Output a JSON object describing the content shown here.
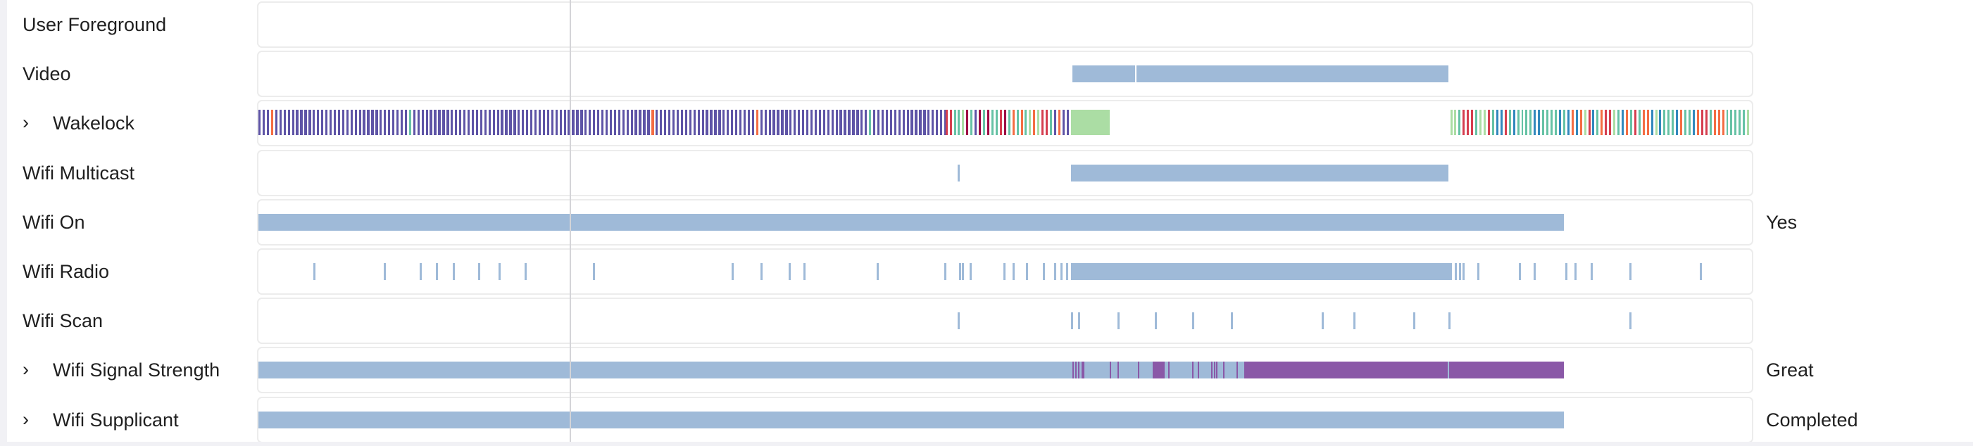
{
  "colors": {
    "bar": "#9fbad8",
    "signal_great": "#8a58a7",
    "wakelock_primary": "#5e54a6",
    "wakelock_teal": "#66c2a5",
    "wakelock_green": "#abdda4",
    "wakelock_red": "#d53e4f",
    "wakelock_orange": "#f46d43",
    "wakelock_maroon": "#9e0142",
    "wakelock_blue": "#3288bd"
  },
  "rows": [
    {
      "label": "User Foreground",
      "expandable": false,
      "value": "",
      "segments": []
    },
    {
      "label": "Video",
      "expandable": false,
      "value": "",
      "segments": [
        [
          54.5,
          58.7
        ],
        [
          58.8,
          79.7
        ]
      ]
    },
    {
      "label": "Wakelock",
      "expandable": true,
      "value": "",
      "wakelock": {
        "dense_primary": [
          0,
          46.0
        ],
        "mixed": [
          46.0,
          54.4
        ],
        "green_block": [
          54.4,
          57.0
        ],
        "teal_mix": [
          79.8,
          100
        ]
      }
    },
    {
      "label": "Wifi Multicast",
      "expandable": false,
      "value": "",
      "segments": [
        [
          46.8,
          46.95
        ],
        [
          54.4,
          79.7
        ]
      ]
    },
    {
      "label": "Wifi On",
      "expandable": false,
      "value": "Yes",
      "segments": [
        [
          0,
          87.4
        ]
      ]
    },
    {
      "label": "Wifi Radio",
      "expandable": false,
      "value": "",
      "ticks": [
        3.7,
        8.4,
        10.8,
        11.9,
        13.0,
        14.7,
        16.1,
        17.8,
        22.4,
        31.7,
        33.6,
        35.5,
        36.5,
        41.4,
        45.9,
        46.9,
        47.1,
        47.6,
        49.9,
        50.5,
        51.4,
        52.5,
        53.3,
        53.7,
        54.1,
        80.1,
        80.4,
        80.6,
        81.6,
        84.4,
        85.4,
        87.5,
        88.1,
        89.2,
        91.8,
        96.5
      ],
      "segments": [
        [
          54.4,
          79.9
        ]
      ]
    },
    {
      "label": "Wifi Scan",
      "expandable": false,
      "value": "",
      "ticks": [
        46.8,
        54.4,
        54.9,
        57.5,
        60.0,
        62.5,
        65.1,
        71.2,
        73.3,
        77.3,
        79.7,
        91.8
      ],
      "segments": []
    },
    {
      "label": "Wifi Signal Strength",
      "expandable": true,
      "value": "Great",
      "segments": [
        [
          0,
          87.4
        ]
      ],
      "great_ticks": [
        54.5,
        54.7,
        54.9,
        55.1,
        55.2,
        57.0,
        57.5,
        58.9,
        60.9,
        62.5,
        62.9,
        63.8,
        64.0,
        64.1,
        64.6,
        65.5
      ],
      "great_segments": [
        [
          59.9,
          60.7
        ],
        [
          66.0,
          79.65
        ],
        [
          79.75,
          87.4
        ]
      ]
    },
    {
      "label": "Wifi Supplicant",
      "expandable": true,
      "value": "Completed",
      "segments": [
        [
          0,
          87.4
        ]
      ]
    }
  ],
  "chevron_icon": "›"
}
